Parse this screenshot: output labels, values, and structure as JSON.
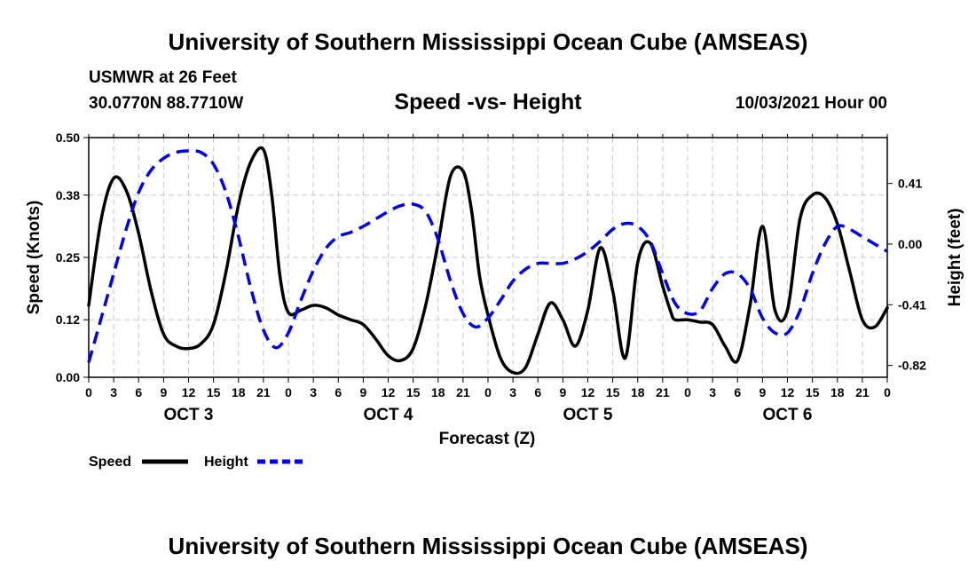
{
  "header": {
    "title": "University of Southern Mississippi Ocean Cube (AMSEAS)",
    "station": "USMWR at 26 Feet",
    "coords": "30.0770N  88.7710W",
    "subtitle": "Speed -vs- Height",
    "datetime": "10/03/2021 Hour 00"
  },
  "footer": {
    "title": "University of Southern Mississippi Ocean Cube (AMSEAS)"
  },
  "chart_data": {
    "type": "line",
    "title": "Speed -vs- Height",
    "xlabel": "Forecast (Z)",
    "ylabel_left": "Speed (Knots)",
    "ylabel_right": "Height (feet)",
    "xlim": [
      0,
      96
    ],
    "ylim_left": [
      0,
      0.5
    ],
    "ylim_right": [
      -0.9,
      0.72
    ],
    "x_tick_labels": [
      "0",
      "3",
      "6",
      "9",
      "12",
      "15",
      "18",
      "21",
      "0",
      "3",
      "6",
      "9",
      "12",
      "15",
      "18",
      "21",
      "0",
      "3",
      "6",
      "9",
      "12",
      "15",
      "18",
      "21",
      "0",
      "3",
      "6",
      "9",
      "12",
      "15",
      "18",
      "21",
      "0"
    ],
    "day_labels": [
      "OCT 3",
      "OCT 4",
      "OCT 5",
      "OCT 6"
    ],
    "y_left_ticks": [
      "0.00",
      "0.12",
      "0.25",
      "0.38",
      "0.50"
    ],
    "y_right_ticks": [
      "-0.82",
      "-0.41",
      "0.00",
      "0.41"
    ],
    "grid": true,
    "legend_position": "bottom-left",
    "legend": [
      "Speed",
      "Height"
    ],
    "series": [
      {
        "name": "Speed",
        "axis": "left",
        "color": "#000000",
        "style": "solid",
        "x": [
          0,
          1.5,
          3,
          4.5,
          6,
          7.5,
          9,
          10.5,
          12,
          13.5,
          15,
          16.5,
          18,
          19.5,
          21,
          22,
          23,
          24,
          25.5,
          27,
          28.5,
          30,
          31.5,
          33,
          34.5,
          36,
          37.5,
          39,
          40.5,
          42,
          43.5,
          45,
          46,
          47,
          48,
          49.5,
          51,
          52.5,
          54,
          55.5,
          57,
          58.5,
          60,
          61.5,
          63,
          64.5,
          66,
          67.5,
          69,
          70,
          70.5,
          72,
          73.5,
          75,
          76.5,
          78,
          79.5,
          81,
          82.5,
          84,
          85.5,
          87,
          88.5,
          90,
          91.5,
          93,
          94.5,
          96
        ],
        "values": [
          0.15,
          0.33,
          0.415,
          0.39,
          0.3,
          0.18,
          0.09,
          0.065,
          0.06,
          0.07,
          0.11,
          0.22,
          0.36,
          0.45,
          0.475,
          0.38,
          0.21,
          0.135,
          0.14,
          0.15,
          0.145,
          0.13,
          0.12,
          0.11,
          0.08,
          0.045,
          0.035,
          0.06,
          0.15,
          0.28,
          0.42,
          0.43,
          0.35,
          0.21,
          0.13,
          0.04,
          0.01,
          0.02,
          0.09,
          0.155,
          0.12,
          0.065,
          0.14,
          0.27,
          0.18,
          0.04,
          0.24,
          0.28,
          0.19,
          0.135,
          0.12,
          0.12,
          0.115,
          0.11,
          0.065,
          0.035,
          0.15,
          0.315,
          0.14,
          0.14,
          0.33,
          0.38,
          0.375,
          0.32,
          0.22,
          0.12,
          0.105,
          0.145
        ]
      },
      {
        "name": "Height",
        "axis": "right",
        "color": "#0000ee",
        "style": "dashed",
        "x": [
          0,
          1.5,
          3,
          4.5,
          6,
          7.5,
          9,
          10.5,
          12,
          13.5,
          15,
          16.5,
          18,
          19.5,
          21,
          22.5,
          24,
          25.5,
          27,
          28.5,
          30,
          31.5,
          33,
          34.5,
          36,
          37.5,
          39,
          40.5,
          42,
          43.5,
          45,
          46.5,
          48,
          49.5,
          51,
          52.5,
          54,
          55.5,
          57,
          58.5,
          60,
          61.5,
          63,
          64.5,
          66,
          67.5,
          69,
          70.5,
          72,
          73.5,
          75,
          76.5,
          78,
          79.5,
          81,
          82.5,
          84,
          85.5,
          87,
          88.5,
          90,
          91.5,
          93,
          94.5,
          96
        ],
        "values": [
          -0.8,
          -0.5,
          -0.2,
          0.1,
          0.35,
          0.5,
          0.58,
          0.62,
          0.63,
          0.62,
          0.54,
          0.35,
          0.05,
          -0.3,
          -0.58,
          -0.7,
          -0.6,
          -0.38,
          -0.18,
          -0.03,
          0.05,
          0.08,
          0.12,
          0.17,
          0.22,
          0.26,
          0.27,
          0.22,
          0.03,
          -0.25,
          -0.47,
          -0.56,
          -0.5,
          -0.38,
          -0.25,
          -0.17,
          -0.13,
          -0.13,
          -0.13,
          -0.1,
          -0.05,
          0.02,
          0.1,
          0.14,
          0.12,
          0.02,
          -0.2,
          -0.4,
          -0.47,
          -0.45,
          -0.3,
          -0.2,
          -0.2,
          -0.3,
          -0.5,
          -0.6,
          -0.6,
          -0.45,
          -0.2,
          0.0,
          0.12,
          0.1,
          0.05,
          0.0,
          -0.05
        ]
      }
    ]
  }
}
